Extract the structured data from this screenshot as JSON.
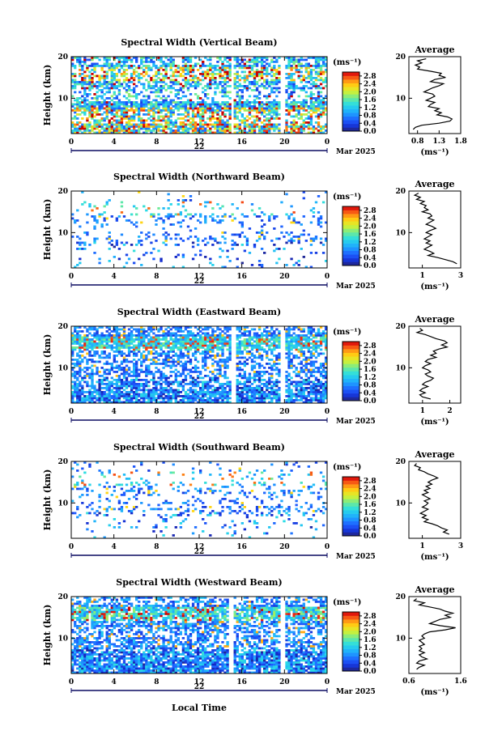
{
  "figure": {
    "xlabel_global": "Local Time",
    "date_label": "Mar 2025",
    "day_label": "22",
    "colorbar_unit": "(ms⁻¹)",
    "avg_title": "Average",
    "avg_xlabel": "(ms⁻¹)",
    "panel_ylabel": "Height (km)"
  },
  "chart_data": [
    {
      "type": "heatmap",
      "title": "Spectral Width (Vertical Beam)",
      "ylabel": "Height (km)",
      "x_ticks": [
        "0",
        "4",
        "8",
        "12",
        "16",
        "20",
        "0"
      ],
      "xlim": [
        0,
        24
      ],
      "y_ticks": [
        "20",
        "10"
      ],
      "ylim": [
        1.5,
        20
      ],
      "colorbar": {
        "ticks": [
          "2.8",
          "2.4",
          "2.0",
          "1.6",
          "1.2",
          "0.8",
          "0.4",
          "0.0"
        ],
        "range": [
          0,
          3.0
        ]
      },
      "gaps_hours": [
        15.1,
        19.8
      ],
      "average_profile": {
        "xlim": [
          0.6,
          1.8
        ],
        "x_ticks": [
          "0.8",
          "1.3",
          "1.8"
        ],
        "y_ticks": [
          "20",
          "10"
        ],
        "points": [
          [
            1.0,
            19.5
          ],
          [
            0.8,
            19.0
          ],
          [
            0.9,
            18.5
          ],
          [
            0.75,
            18.0
          ],
          [
            0.85,
            17.5
          ],
          [
            0.8,
            17.0
          ],
          [
            1.1,
            16.5
          ],
          [
            1.35,
            16.0
          ],
          [
            1.3,
            15.5
          ],
          [
            1.45,
            15.0
          ],
          [
            1.2,
            14.5
          ],
          [
            1.1,
            14.0
          ],
          [
            1.4,
            13.5
          ],
          [
            1.3,
            13.0
          ],
          [
            1.15,
            12.5
          ],
          [
            1.05,
            12.0
          ],
          [
            0.95,
            11.5
          ],
          [
            1.15,
            11.0
          ],
          [
            1.2,
            10.5
          ],
          [
            1.1,
            10.0
          ],
          [
            1.0,
            9.5
          ],
          [
            1.2,
            9.0
          ],
          [
            1.1,
            8.5
          ],
          [
            1.05,
            8.0
          ],
          [
            1.3,
            7.5
          ],
          [
            1.2,
            7.0
          ],
          [
            1.35,
            6.5
          ],
          [
            1.25,
            6.0
          ],
          [
            1.5,
            5.5
          ],
          [
            1.6,
            5.0
          ],
          [
            1.55,
            4.5
          ],
          [
            1.3,
            4.0
          ],
          [
            0.9,
            3.5
          ],
          [
            0.75,
            3.0
          ],
          [
            0.7,
            2.5
          ]
        ]
      }
    },
    {
      "type": "heatmap",
      "title": "Spectral Width (Northward Beam)",
      "ylabel": "Height (km)",
      "x_ticks": [
        "0",
        "4",
        "8",
        "12",
        "16",
        "20",
        "0"
      ],
      "xlim": [
        0,
        24
      ],
      "y_ticks": [
        "20",
        "10"
      ],
      "ylim": [
        1.5,
        20
      ],
      "colorbar": {
        "ticks": [
          "2.8",
          "2.4",
          "2.0",
          "1.6",
          "1.2",
          "0.8",
          "0.4",
          "0.0"
        ],
        "range": [
          0,
          3.0
        ]
      },
      "gaps_hours": [],
      "average_profile": {
        "xlim": [
          0.3,
          3.0
        ],
        "x_ticks": [
          "1",
          "3"
        ],
        "y_ticks": [
          "20",
          "10"
        ],
        "points": [
          [
            0.8,
            19.5
          ],
          [
            0.6,
            19.0
          ],
          [
            0.9,
            18.5
          ],
          [
            0.7,
            18.0
          ],
          [
            1.1,
            17.5
          ],
          [
            0.9,
            17.0
          ],
          [
            1.2,
            16.5
          ],
          [
            1.1,
            16.0
          ],
          [
            1.3,
            15.5
          ],
          [
            1.0,
            15.0
          ],
          [
            1.4,
            14.5
          ],
          [
            1.5,
            14.0
          ],
          [
            1.3,
            13.5
          ],
          [
            1.6,
            13.0
          ],
          [
            1.4,
            12.5
          ],
          [
            1.2,
            12.0
          ],
          [
            1.5,
            11.5
          ],
          [
            1.7,
            11.0
          ],
          [
            1.4,
            10.5
          ],
          [
            1.2,
            10.0
          ],
          [
            1.5,
            9.5
          ],
          [
            1.3,
            9.0
          ],
          [
            1.1,
            8.5
          ],
          [
            1.4,
            8.0
          ],
          [
            1.2,
            7.5
          ],
          [
            1.5,
            7.0
          ],
          [
            1.3,
            6.5
          ],
          [
            1.1,
            6.0
          ],
          [
            1.4,
            5.5
          ],
          [
            1.6,
            5.0
          ],
          [
            1.3,
            4.5
          ],
          [
            1.8,
            4.0
          ],
          [
            2.2,
            3.5
          ],
          [
            2.6,
            3.0
          ],
          [
            2.8,
            2.5
          ]
        ]
      }
    },
    {
      "type": "heatmap",
      "title": "Spectral Width (Eastward Beam)",
      "ylabel": "Height (km)",
      "x_ticks": [
        "0",
        "4",
        "8",
        "12",
        "16",
        "20",
        "0"
      ],
      "xlim": [
        0,
        24
      ],
      "y_ticks": [
        "20",
        "10"
      ],
      "ylim": [
        1.5,
        20
      ],
      "colorbar": {
        "ticks": [
          "2.8",
          "2.4",
          "2.0",
          "1.6",
          "1.2",
          "0.8",
          "0.4",
          "0.0"
        ],
        "range": [
          0,
          3.0
        ]
      },
      "gaps_hours": [
        15.2,
        19.8
      ],
      "average_profile": {
        "xlim": [
          0.5,
          2.4
        ],
        "x_ticks": [
          "1",
          "2"
        ],
        "y_ticks": [
          "20",
          "10"
        ],
        "points": [
          [
            0.9,
            19.5
          ],
          [
            1.0,
            19.0
          ],
          [
            0.8,
            18.5
          ],
          [
            1.1,
            18.0
          ],
          [
            1.3,
            17.5
          ],
          [
            1.5,
            17.0
          ],
          [
            1.8,
            16.5
          ],
          [
            1.9,
            16.0
          ],
          [
            1.7,
            15.5
          ],
          [
            1.9,
            15.0
          ],
          [
            1.6,
            14.5
          ],
          [
            1.4,
            14.0
          ],
          [
            1.5,
            13.5
          ],
          [
            1.3,
            13.0
          ],
          [
            1.5,
            12.5
          ],
          [
            1.2,
            12.0
          ],
          [
            1.1,
            11.5
          ],
          [
            1.3,
            11.0
          ],
          [
            1.1,
            10.5
          ],
          [
            1.0,
            10.0
          ],
          [
            1.2,
            9.5
          ],
          [
            1.3,
            9.0
          ],
          [
            1.1,
            8.5
          ],
          [
            1.2,
            8.0
          ],
          [
            1.4,
            7.5
          ],
          [
            1.3,
            7.0
          ],
          [
            1.1,
            6.5
          ],
          [
            1.0,
            6.0
          ],
          [
            1.2,
            5.5
          ],
          [
            1.0,
            5.0
          ],
          [
            0.9,
            4.5
          ],
          [
            1.1,
            4.0
          ],
          [
            0.9,
            3.5
          ],
          [
            1.0,
            3.0
          ],
          [
            1.3,
            2.5
          ]
        ]
      }
    },
    {
      "type": "heatmap",
      "title": "Spectral Width (Southward Beam)",
      "ylabel": "Height (km)",
      "x_ticks": [
        "0",
        "4",
        "8",
        "12",
        "16",
        "20",
        "0"
      ],
      "xlim": [
        0,
        24
      ],
      "y_ticks": [
        "20",
        "10"
      ],
      "ylim": [
        1.5,
        20
      ],
      "colorbar": {
        "ticks": [
          "2.8",
          "2.4",
          "2.0",
          "1.6",
          "1.2",
          "0.8",
          "0.4",
          "0.0"
        ],
        "range": [
          0,
          3.0
        ]
      },
      "gaps_hours": [],
      "average_profile": {
        "xlim": [
          0.3,
          3.0
        ],
        "x_ticks": [
          "1",
          "3"
        ],
        "y_ticks": [
          "20",
          "10"
        ],
        "points": [
          [
            0.7,
            19.5
          ],
          [
            0.6,
            19.0
          ],
          [
            0.9,
            18.5
          ],
          [
            0.8,
            18.0
          ],
          [
            1.1,
            17.5
          ],
          [
            1.3,
            17.0
          ],
          [
            1.6,
            16.5
          ],
          [
            1.8,
            16.0
          ],
          [
            1.5,
            15.5
          ],
          [
            1.3,
            15.0
          ],
          [
            1.5,
            14.5
          ],
          [
            1.2,
            14.0
          ],
          [
            1.4,
            13.5
          ],
          [
            1.1,
            13.0
          ],
          [
            1.3,
            12.5
          ],
          [
            1.0,
            12.0
          ],
          [
            1.2,
            11.5
          ],
          [
            1.4,
            11.0
          ],
          [
            1.1,
            10.5
          ],
          [
            1.3,
            10.0
          ],
          [
            1.2,
            9.5
          ],
          [
            1.0,
            9.0
          ],
          [
            1.3,
            8.5
          ],
          [
            1.1,
            8.0
          ],
          [
            0.9,
            7.5
          ],
          [
            1.2,
            7.0
          ],
          [
            1.0,
            6.5
          ],
          [
            1.3,
            6.0
          ],
          [
            1.1,
            5.5
          ],
          [
            1.5,
            5.0
          ],
          [
            1.8,
            4.5
          ],
          [
            2.0,
            4.0
          ],
          [
            2.3,
            3.5
          ],
          [
            2.1,
            3.0
          ],
          [
            2.4,
            2.5
          ]
        ]
      }
    },
    {
      "type": "heatmap",
      "title": "Spectral Width (Westward Beam)",
      "ylabel": "Height (km)",
      "x_ticks": [
        "0",
        "4",
        "8",
        "12",
        "16",
        "20",
        "0"
      ],
      "xlim": [
        0,
        24
      ],
      "y_ticks": [
        "20",
        "10"
      ],
      "ylim": [
        1.5,
        20
      ],
      "colorbar": {
        "ticks": [
          "2.8",
          "2.4",
          "2.0",
          "1.6",
          "1.2",
          "0.8",
          "0.4",
          "0.0"
        ],
        "range": [
          0,
          3.0
        ]
      },
      "gaps_hours": [
        15.0,
        19.9
      ],
      "average_profile": {
        "xlim": [
          0.6,
          1.6
        ],
        "x_ticks": [
          "0.6",
          "1.6"
        ],
        "y_ticks": [
          "20",
          "10"
        ],
        "points": [
          [
            0.75,
            19.5
          ],
          [
            0.7,
            19.0
          ],
          [
            0.9,
            18.5
          ],
          [
            0.8,
            18.0
          ],
          [
            1.0,
            17.5
          ],
          [
            1.2,
            17.0
          ],
          [
            1.3,
            16.5
          ],
          [
            1.45,
            16.0
          ],
          [
            1.3,
            15.5
          ],
          [
            1.4,
            15.0
          ],
          [
            1.2,
            14.5
          ],
          [
            1.1,
            14.0
          ],
          [
            1.0,
            13.5
          ],
          [
            1.2,
            13.0
          ],
          [
            1.5,
            12.5
          ],
          [
            1.3,
            12.0
          ],
          [
            1.0,
            11.5
          ],
          [
            0.9,
            11.0
          ],
          [
            0.85,
            10.5
          ],
          [
            0.9,
            10.0
          ],
          [
            0.8,
            9.5
          ],
          [
            0.85,
            9.0
          ],
          [
            0.9,
            8.5
          ],
          [
            0.8,
            8.0
          ],
          [
            0.85,
            7.5
          ],
          [
            0.8,
            7.0
          ],
          [
            0.9,
            6.5
          ],
          [
            0.8,
            6.0
          ],
          [
            0.85,
            5.5
          ],
          [
            0.95,
            5.0
          ],
          [
            0.8,
            4.5
          ],
          [
            0.75,
            4.0
          ],
          [
            0.9,
            3.5
          ],
          [
            0.8,
            3.0
          ],
          [
            0.75,
            2.5
          ]
        ]
      }
    }
  ]
}
